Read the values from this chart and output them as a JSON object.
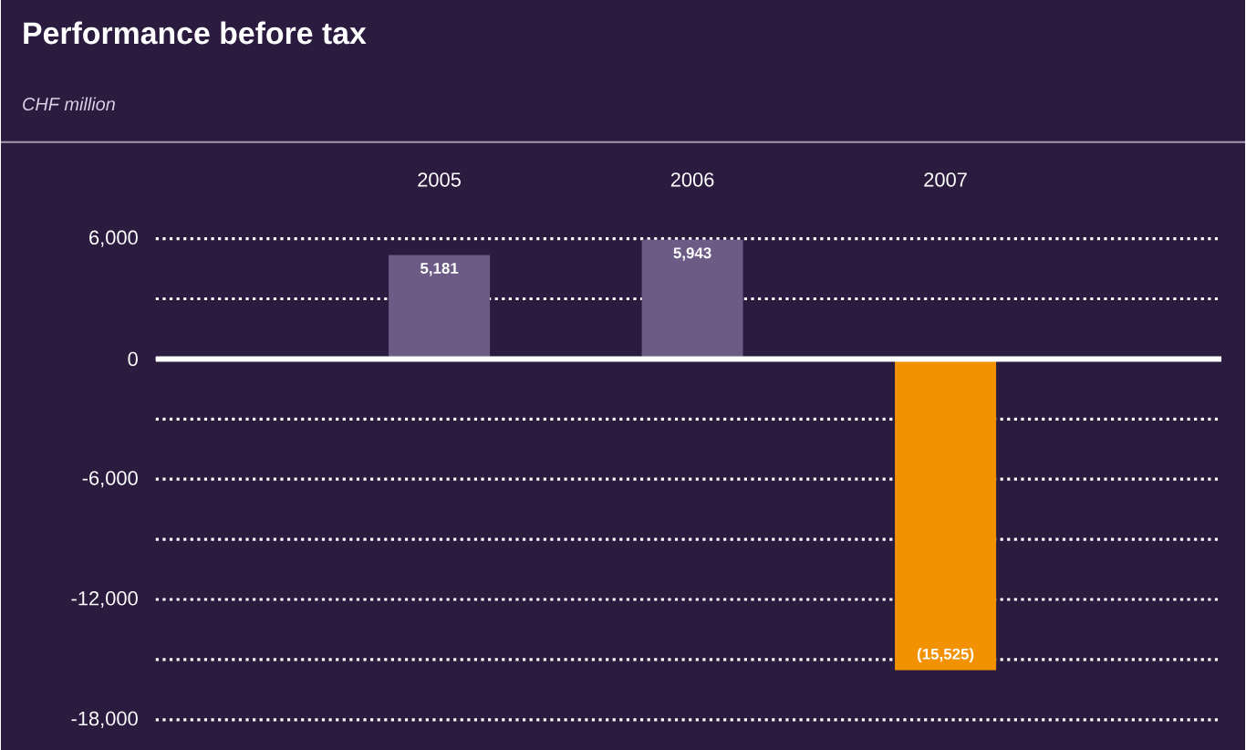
{
  "chart_data": {
    "type": "bar",
    "title": "Performance before tax",
    "subtitle": "CHF million",
    "categories": [
      "2005",
      "2006",
      "2007"
    ],
    "values": [
      5181,
      5943,
      -15525
    ],
    "colors": [
      "#6b5b85",
      "#6b5b85",
      "#f39200"
    ],
    "value_labels": [
      "5,181",
      "5,943",
      "(15,525)"
    ],
    "ylim": [
      -18000,
      6000
    ],
    "yticks": [
      {
        "value": -18000,
        "label": "-18,000"
      },
      {
        "value": -15000,
        "label": null
      },
      {
        "value": -12000,
        "label": "-12,000"
      },
      {
        "value": -9000,
        "label": null
      },
      {
        "value": -6000,
        "label": "-6,000"
      },
      {
        "value": -3000,
        "label": null
      },
      0,
      {
        "value": 3000,
        "label": null
      },
      {
        "value": 6000,
        "label": "6,000"
      }
    ],
    "grid": "y",
    "ref_lines": [
      {
        "axis": "y",
        "value": 0,
        "color": "#ffffff"
      }
    ]
  }
}
